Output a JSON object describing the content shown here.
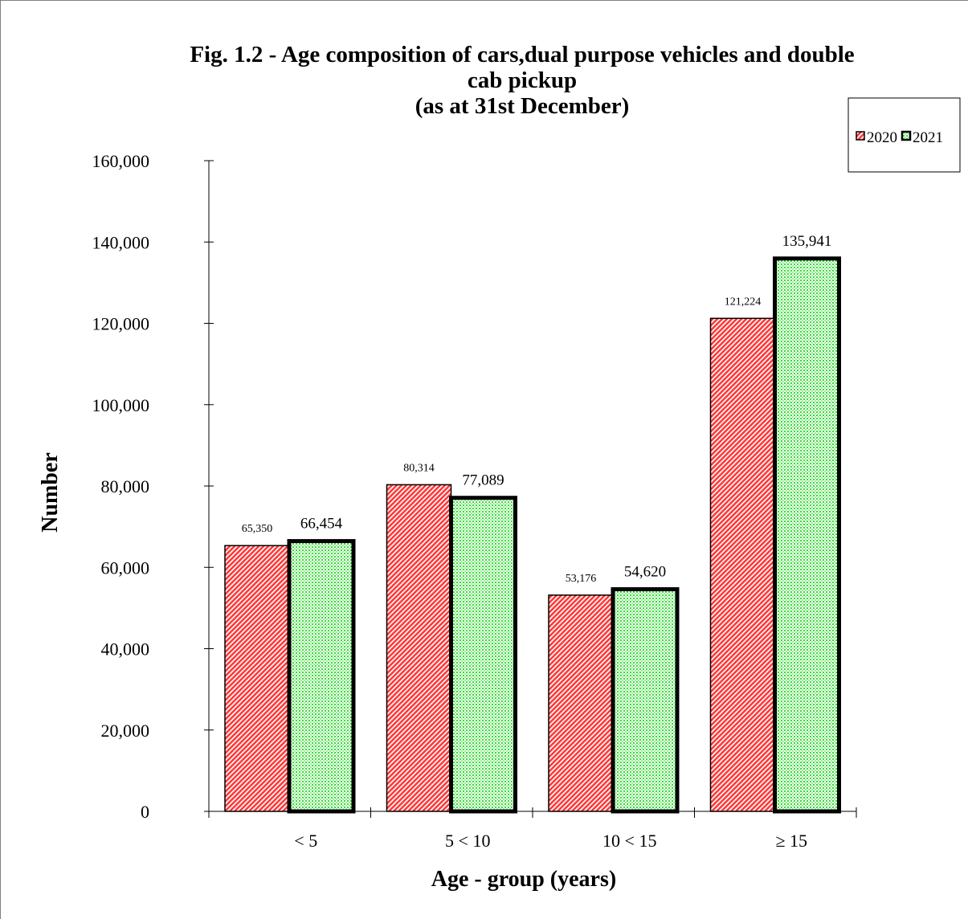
{
  "chart_data": {
    "type": "bar",
    "title_lines": [
      "Fig. 1.2 -  Age composition of cars,dual purpose vehicles and double",
      "cab pickup",
      "(as at 31st  December)"
    ],
    "xlabel": "Age - group (years)",
    "ylabel": "Number",
    "categories": [
      "<  5",
      "5 < 10",
      "10 < 15",
      "≥ 15"
    ],
    "series": [
      {
        "name": "2020",
        "values": [
          65350,
          80314,
          53176,
          121224
        ],
        "value_labels": [
          "65,350",
          "80,314",
          "53,176",
          "121,224"
        ],
        "fill": "#ff3b3b",
        "pattern": "diagonal-stripes",
        "outline": "#000000"
      },
      {
        "name": "2021",
        "values": [
          66454,
          77089,
          54620,
          135941
        ],
        "value_labels": [
          "66,454",
          "77,089",
          "54,620",
          "135,941"
        ],
        "fill": "#33dd33",
        "pattern": "dots",
        "outline": "#000000"
      }
    ],
    "ylim": [
      0,
      160000
    ],
    "yticks": [
      0,
      20000,
      40000,
      60000,
      80000,
      100000,
      120000,
      140000,
      160000
    ],
    "ytick_labels": [
      "0",
      "20,000",
      "40,000",
      "60,000",
      "80,000",
      "100,000",
      "120,000",
      "140,000",
      "160,000"
    ],
    "grid": false,
    "legend_position": "top-right"
  }
}
